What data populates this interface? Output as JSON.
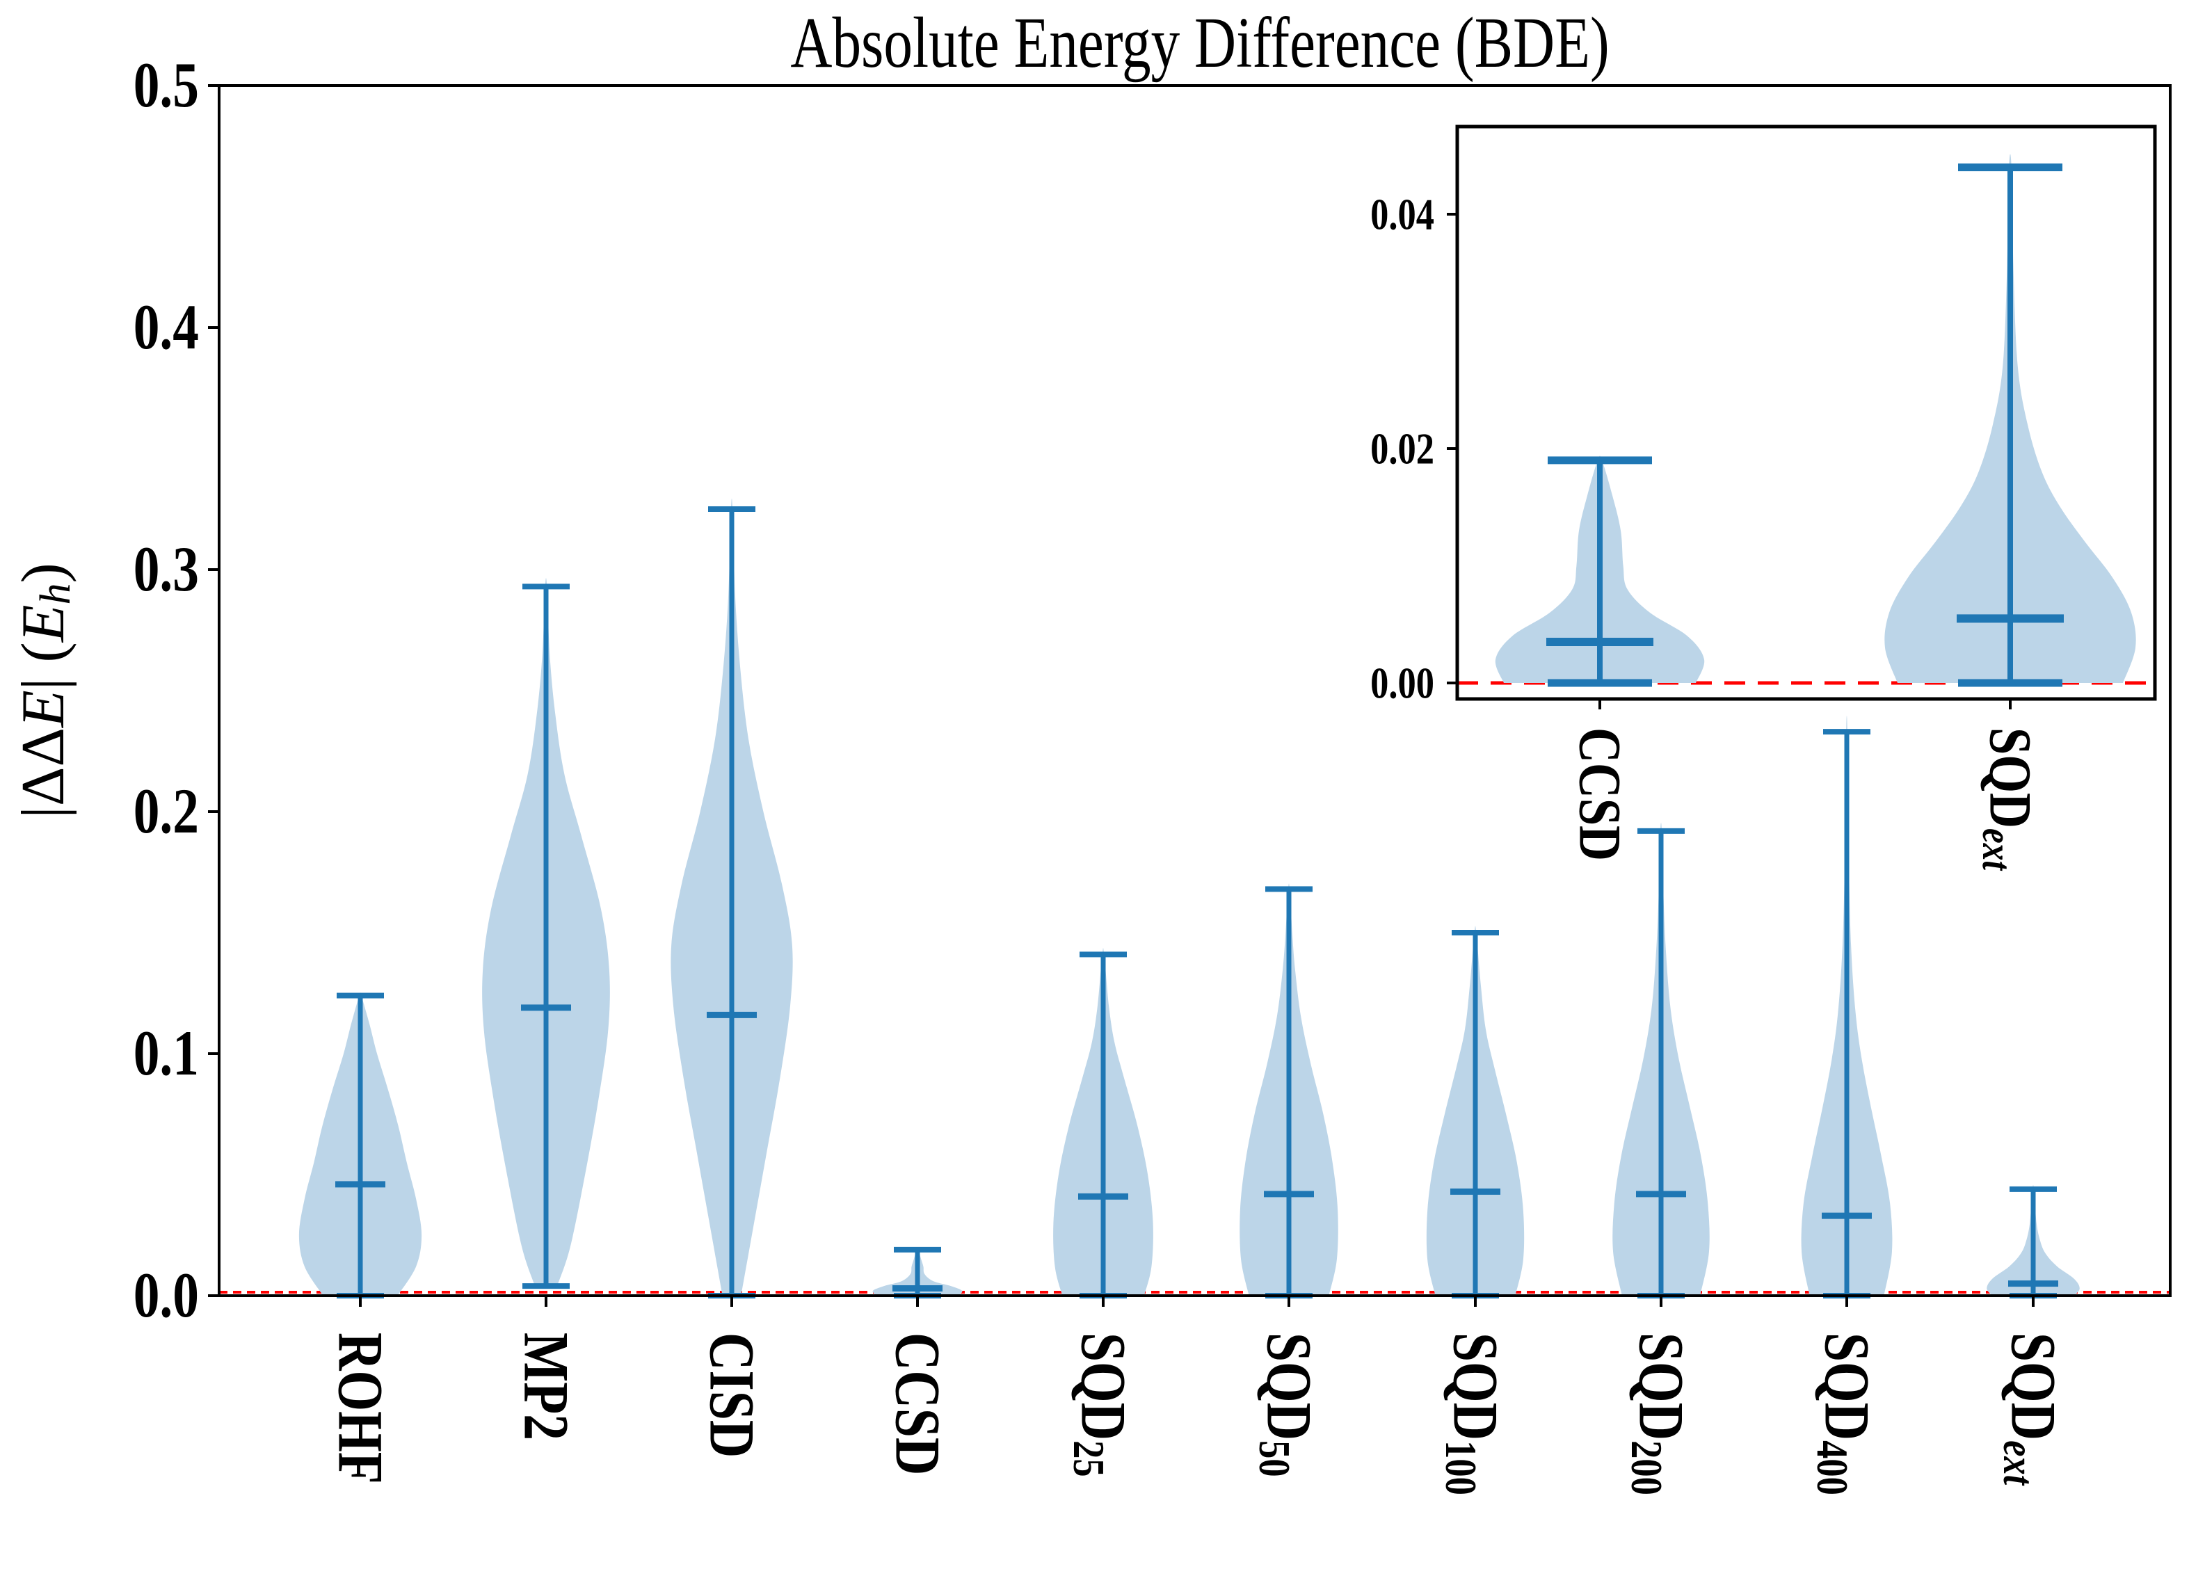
{
  "title": "Absolute Energy Difference (BDE)",
  "ylabel_plain": "|ΔΔE| (E_h)",
  "ylabel_parts": [
    {
      "t": "|ΔΔ"
    },
    {
      "t": "E",
      "italic": true
    },
    {
      "t": "| ("
    },
    {
      "t": "E",
      "italic": true
    },
    {
      "t": "h",
      "italic": true,
      "sub": true
    },
    {
      "t": ")"
    }
  ],
  "colors": {
    "line_blue": "#1f77b4",
    "violin_fill": "#bcd5e8",
    "zero_line_red": "#ff0000",
    "axis_black": "#000000",
    "background": "#ffffff"
  },
  "chart_data": [
    {
      "id": "main",
      "type": "violin",
      "title": "Absolute Energy Difference (BDE)",
      "ylabel": "|ΔΔE| (E_h)",
      "ylim": [
        0.0,
        0.5
      ],
      "grid": false,
      "zero_reference_line": 0.0,
      "yticks": [
        {
          "v": 0.0,
          "label": "0.0"
        },
        {
          "v": 0.1,
          "label": "0.1"
        },
        {
          "v": 0.2,
          "label": "0.2"
        },
        {
          "v": 0.3,
          "label": "0.3"
        },
        {
          "v": 0.4,
          "label": "0.4"
        },
        {
          "v": 0.5,
          "label": "0.5"
        }
      ],
      "series": [
        {
          "key": "rohf",
          "label": "ROHF",
          "sub": "",
          "sub_italic": false,
          "min": 0.0,
          "median": 0.046,
          "max": 0.124,
          "profile": [
            [
              0,
              0.2
            ],
            [
              0.012,
              0.3
            ],
            [
              0.025,
              0.33
            ],
            [
              0.04,
              0.3
            ],
            [
              0.055,
              0.25
            ],
            [
              0.07,
              0.205
            ],
            [
              0.085,
              0.15
            ],
            [
              0.1,
              0.09
            ],
            [
              0.112,
              0.05
            ],
            [
              0.124,
              0.005
            ]
          ]
        },
        {
          "key": "mp2",
          "label": "MP2",
          "sub": "",
          "sub_italic": false,
          "min": 0.004,
          "median": 0.119,
          "max": 0.293,
          "profile": [
            [
              0.004,
              0.06
            ],
            [
              0.02,
              0.13
            ],
            [
              0.05,
              0.21
            ],
            [
              0.08,
              0.28
            ],
            [
              0.11,
              0.335
            ],
            [
              0.135,
              0.34
            ],
            [
              0.16,
              0.295
            ],
            [
              0.19,
              0.19
            ],
            [
              0.215,
              0.1
            ],
            [
              0.24,
              0.05
            ],
            [
              0.265,
              0.02
            ],
            [
              0.293,
              0.005
            ]
          ]
        },
        {
          "key": "cisd",
          "label": "CISD",
          "sub": "",
          "sub_italic": false,
          "min": 0.0,
          "median": 0.116,
          "max": 0.325,
          "profile": [
            [
              0,
              0.05
            ],
            [
              0.03,
              0.12
            ],
            [
              0.06,
              0.19
            ],
            [
              0.09,
              0.26
            ],
            [
              0.12,
              0.315
            ],
            [
              0.145,
              0.325
            ],
            [
              0.17,
              0.27
            ],
            [
              0.2,
              0.17
            ],
            [
              0.23,
              0.09
            ],
            [
              0.26,
              0.045
            ],
            [
              0.29,
              0.018
            ],
            [
              0.325,
              0.004
            ]
          ]
        },
        {
          "key": "ccsd",
          "label": "CCSD",
          "sub": "",
          "sub_italic": false,
          "min": 0.0,
          "median": 0.003,
          "max": 0.019,
          "profile": [
            [
              0,
              0.22
            ],
            [
              0.002,
              0.24
            ],
            [
              0.004,
              0.18
            ],
            [
              0.006,
              0.085
            ],
            [
              0.009,
              0.038
            ],
            [
              0.012,
              0.032
            ],
            [
              0.015,
              0.02
            ],
            [
              0.019,
              0.004
            ]
          ]
        },
        {
          "key": "sqd-25",
          "label": "SQD",
          "sub": "25",
          "sub_italic": false,
          "min": 0.0,
          "median": 0.041,
          "max": 0.141,
          "profile": [
            [
              0,
              0.22
            ],
            [
              0.012,
              0.26
            ],
            [
              0.03,
              0.268
            ],
            [
              0.05,
              0.24
            ],
            [
              0.07,
              0.185
            ],
            [
              0.09,
              0.112
            ],
            [
              0.105,
              0.06
            ],
            [
              0.12,
              0.03
            ],
            [
              0.141,
              0.005
            ]
          ]
        },
        {
          "key": "sqd-50",
          "label": "SQD",
          "sub": "50",
          "sub_italic": false,
          "min": 0.0,
          "median": 0.042,
          "max": 0.168,
          "profile": [
            [
              0,
              0.215
            ],
            [
              0.015,
              0.258
            ],
            [
              0.035,
              0.263
            ],
            [
              0.055,
              0.235
            ],
            [
              0.075,
              0.185
            ],
            [
              0.095,
              0.12
            ],
            [
              0.115,
              0.065
            ],
            [
              0.135,
              0.033
            ],
            [
              0.15,
              0.018
            ],
            [
              0.168,
              0.004
            ]
          ]
        },
        {
          "key": "sqd-100",
          "label": "SQD",
          "sub": "100",
          "sub_italic": false,
          "min": 0.0,
          "median": 0.043,
          "max": 0.15,
          "profile": [
            [
              0,
              0.215
            ],
            [
              0.015,
              0.258
            ],
            [
              0.035,
              0.258
            ],
            [
              0.055,
              0.224
            ],
            [
              0.075,
              0.165
            ],
            [
              0.095,
              0.1
            ],
            [
              0.11,
              0.056
            ],
            [
              0.128,
              0.03
            ],
            [
              0.15,
              0.005
            ]
          ]
        },
        {
          "key": "sqd-200",
          "label": "SQD",
          "sub": "200",
          "sub_italic": false,
          "min": 0.0,
          "median": 0.042,
          "max": 0.192,
          "profile": [
            [
              0,
              0.21
            ],
            [
              0.018,
              0.258
            ],
            [
              0.038,
              0.252
            ],
            [
              0.058,
              0.214
            ],
            [
              0.078,
              0.155
            ],
            [
              0.098,
              0.095
            ],
            [
              0.118,
              0.052
            ],
            [
              0.14,
              0.028
            ],
            [
              0.165,
              0.013
            ],
            [
              0.192,
              0.004
            ]
          ]
        },
        {
          "key": "sqd-400",
          "label": "SQD",
          "sub": "400",
          "sub_italic": false,
          "min": 0.0,
          "median": 0.033,
          "max": 0.233,
          "profile": [
            [
              0,
              0.2
            ],
            [
              0.018,
              0.243
            ],
            [
              0.038,
              0.233
            ],
            [
              0.058,
              0.185
            ],
            [
              0.078,
              0.13
            ],
            [
              0.098,
              0.08
            ],
            [
              0.118,
              0.046
            ],
            [
              0.145,
              0.023
            ],
            [
              0.18,
              0.011
            ],
            [
              0.233,
              0.003
            ]
          ]
        },
        {
          "key": "sqd-ext",
          "label": "SQD",
          "sub": "ext",
          "sub_italic": true,
          "min": 0.0,
          "median": 0.005,
          "max": 0.044,
          "profile": [
            [
              0,
              0.22
            ],
            [
              0.003,
              0.25
            ],
            [
              0.007,
              0.22
            ],
            [
              0.012,
              0.13
            ],
            [
              0.017,
              0.07
            ],
            [
              0.022,
              0.04
            ],
            [
              0.03,
              0.018
            ],
            [
              0.044,
              0.004
            ]
          ]
        }
      ]
    },
    {
      "id": "inset",
      "type": "violin",
      "ylim": [
        -0.0014,
        0.0475
      ],
      "grid": false,
      "zero_reference_line": 0.0,
      "yticks": [
        {
          "v": 0.0,
          "label": "0.00"
        },
        {
          "v": 0.02,
          "label": "0.02"
        },
        {
          "v": 0.04,
          "label": "0.04"
        }
      ],
      "series": [
        {
          "key": "ccsd",
          "label": "CCSD",
          "sub": "",
          "sub_italic": false,
          "min": 0.0,
          "median": 0.0035,
          "max": 0.019,
          "profile": [
            [
              0,
              0.23
            ],
            [
              0.002,
              0.25
            ],
            [
              0.004,
              0.21
            ],
            [
              0.006,
              0.12
            ],
            [
              0.008,
              0.066
            ],
            [
              0.01,
              0.056
            ],
            [
              0.013,
              0.05
            ],
            [
              0.016,
              0.03
            ],
            [
              0.019,
              0.005
            ]
          ]
        },
        {
          "key": "sqd-ext",
          "label": "SQD",
          "sub": "ext",
          "sub_italic": true,
          "min": 0.0,
          "median": 0.0055,
          "max": 0.044,
          "profile": [
            [
              0,
              0.27
            ],
            [
              0.003,
              0.3
            ],
            [
              0.006,
              0.29
            ],
            [
              0.009,
              0.245
            ],
            [
              0.012,
              0.18
            ],
            [
              0.015,
              0.12
            ],
            [
              0.018,
              0.076
            ],
            [
              0.022,
              0.042
            ],
            [
              0.027,
              0.018
            ],
            [
              0.035,
              0.008
            ],
            [
              0.044,
              0.003
            ]
          ]
        }
      ]
    }
  ]
}
